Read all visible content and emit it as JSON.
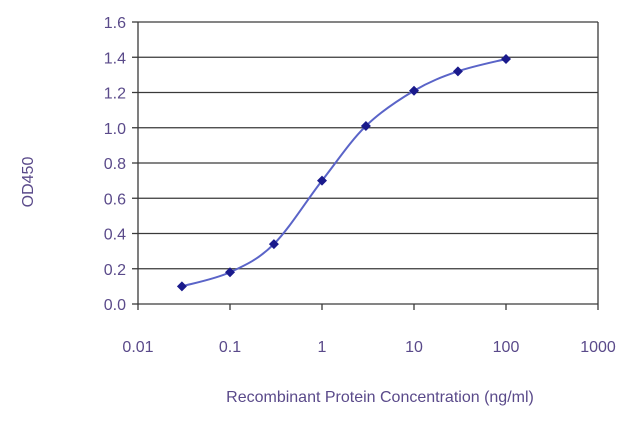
{
  "chart_data": {
    "type": "line",
    "title": "",
    "xlabel": "Recombinant Protein Concentration  (ng/ml)",
    "ylabel": "OD450",
    "x_scale": "log",
    "xlim": [
      0.01,
      1000
    ],
    "ylim": [
      0,
      1.6
    ],
    "x_ticks": [
      "0.01",
      "0.1",
      "1",
      "10",
      "100",
      "1000"
    ],
    "y_ticks": [
      "0.0",
      "0.2",
      "0.4",
      "0.6",
      "0.8",
      "1.0",
      "1.2",
      "1.4",
      "1.6"
    ],
    "grid": "horizontal",
    "legend": "none",
    "series": [
      {
        "color": "#1a1a8c",
        "line_color": "#5a64c8",
        "x": [
          0.03,
          0.1,
          0.3,
          1,
          3,
          10,
          30,
          100
        ],
        "y": [
          0.1,
          0.18,
          0.34,
          0.7,
          1.01,
          1.21,
          1.32,
          1.39
        ]
      }
    ]
  }
}
